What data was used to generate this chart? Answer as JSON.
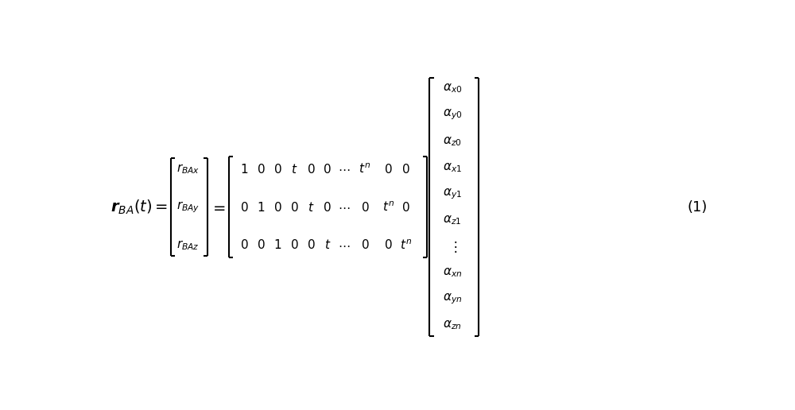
{
  "background_color": "#ffffff",
  "figsize": [
    10.0,
    5.16
  ],
  "dpi": 100,
  "font_size": 13,
  "small_font_size": 11,
  "eq_num": "(1)",
  "lhs": "$\\boldsymbol{r}_{BA}(t)=$",
  "col_vec": [
    "$r_{BAx}$",
    "$r_{BAy}$",
    "$r_{BAz}$"
  ],
  "matrix_rows": [
    [
      "$1$",
      "$0$",
      "$0$",
      "$t$",
      "$0$",
      "$0$",
      "$\\cdots$",
      "$t^{n}$",
      "$0$",
      "$0$"
    ],
    [
      "$0$",
      "$1$",
      "$0$",
      "$0$",
      "$t$",
      "$0$",
      "$\\cdots$",
      "$0$",
      "$t^{n}$",
      "$0$"
    ],
    [
      "$0$",
      "$0$",
      "$1$",
      "$0$",
      "$0$",
      "$t$",
      "$\\cdots$",
      "$0$",
      "$0$",
      "$t^{n}$"
    ]
  ],
  "alpha_vec": [
    "$\\alpha_{x0}$",
    "$\\alpha_{y0}$",
    "$\\alpha_{z0}$",
    "$\\alpha_{x1}$",
    "$\\alpha_{y1}$",
    "$\\alpha_{z1}$",
    "$\\vdots$",
    "$\\alpha_{xn}$",
    "$\\alpha_{yn}$",
    "$\\alpha_{zn}$"
  ],
  "equals2": "$=$"
}
